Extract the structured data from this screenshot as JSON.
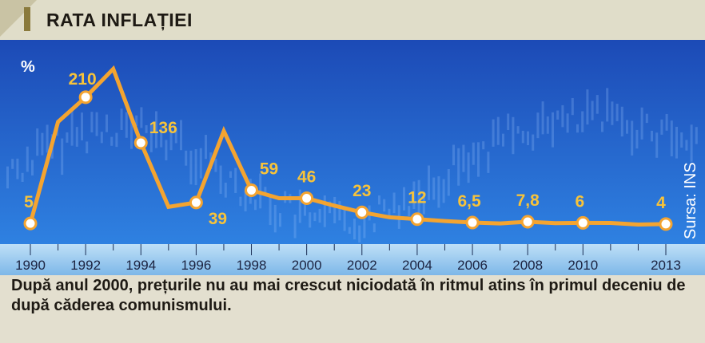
{
  "header": {
    "title": "RATA INFLAȚIEI"
  },
  "chart_data": {
    "type": "line",
    "unit_label": "%",
    "source": "Sursa: INS",
    "x": [
      1990,
      1991,
      1992,
      1993,
      1994,
      1995,
      1996,
      1997,
      1998,
      1999,
      2000,
      2001,
      2002,
      2003,
      2004,
      2005,
      2006,
      2007,
      2008,
      2009,
      2010,
      2011,
      2012,
      2013
    ],
    "values": [
      5,
      170,
      210,
      256,
      136,
      32,
      39,
      155,
      59,
      46,
      46,
      34,
      23,
      15,
      12,
      9,
      6.5,
      5,
      7.8,
      5.6,
      6,
      5.8,
      3.3,
      4
    ],
    "labeled_points": [
      {
        "x": 1990,
        "y": 5,
        "label": "5"
      },
      {
        "x": 1992,
        "y": 210,
        "label": "210"
      },
      {
        "x": 1994,
        "y": 136,
        "label": "136"
      },
      {
        "x": 1996,
        "y": 39,
        "label": "39"
      },
      {
        "x": 1998,
        "y": 59,
        "label": "59"
      },
      {
        "x": 2000,
        "y": 46,
        "label": "46"
      },
      {
        "x": 2002,
        "y": 23,
        "label": "23"
      },
      {
        "x": 2004,
        "y": 12,
        "label": "12"
      },
      {
        "x": 2006,
        "y": 6.5,
        "label": "6,5"
      },
      {
        "x": 2008,
        "y": 7.8,
        "label": "7,8"
      },
      {
        "x": 2010,
        "y": 6,
        "label": "6"
      },
      {
        "x": 2013,
        "y": 4,
        "label": "4"
      }
    ],
    "x_ticks": [
      "1990",
      "1992",
      "1994",
      "1996",
      "1998",
      "2000",
      "2002",
      "2004",
      "2006",
      "2008",
      "2010",
      "2013"
    ],
    "x_tick_values": [
      1990,
      1992,
      1994,
      1996,
      1998,
      2000,
      2002,
      2004,
      2006,
      2008,
      2010,
      2013
    ],
    "colors": {
      "line": "#f4a430",
      "label": "#f7c33a",
      "marker_fill": "#ffffff",
      "background_top": "#1e4fbc",
      "background_bottom": "#2f7fe0"
    }
  },
  "caption": "După anul 2000, prețurile nu au mai crescut niciodată în ritmul atins în primul deceniu de după căderea comunismului."
}
